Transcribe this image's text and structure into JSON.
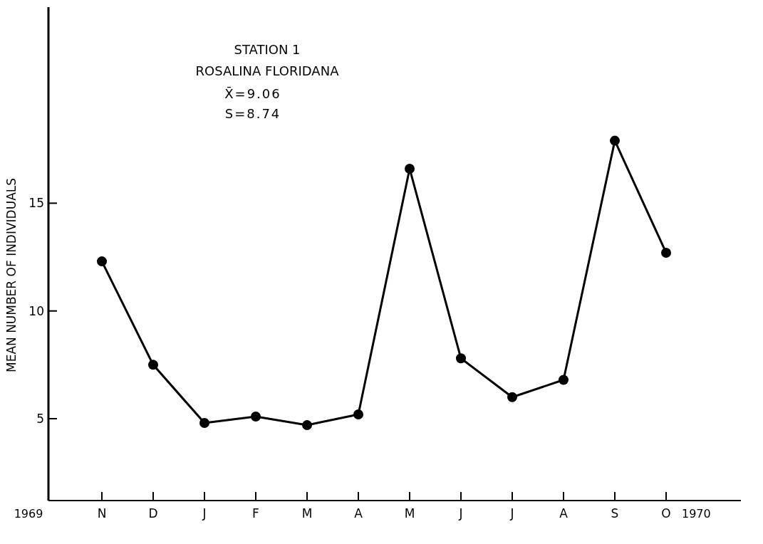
{
  "chart_data": {
    "type": "line",
    "title": "STATION 1",
    "subtitle": "ROSALINA FLORIDANA",
    "annotations": [
      "X̄=9.06",
      "S=8.74",
      "1969",
      "1970"
    ],
    "ylabel": "MEAN NUMBER OF INDIVIDUALS",
    "categories": [
      "N",
      "D",
      "J",
      "F",
      "M",
      "A",
      "M",
      "J",
      "J",
      "A",
      "S",
      "O"
    ],
    "series": [
      {
        "color": "#000000",
        "values": [
          12.3,
          7.5,
          4.8,
          5.1,
          4.7,
          5.2,
          16.6,
          7.8,
          6.0,
          6.8,
          17.9,
          12.7
        ]
      }
    ],
    "ylim": [
      1.2,
      24.1
    ],
    "yticks": [
      5,
      10,
      15
    ],
    "marker": "circle",
    "grid": false
  }
}
